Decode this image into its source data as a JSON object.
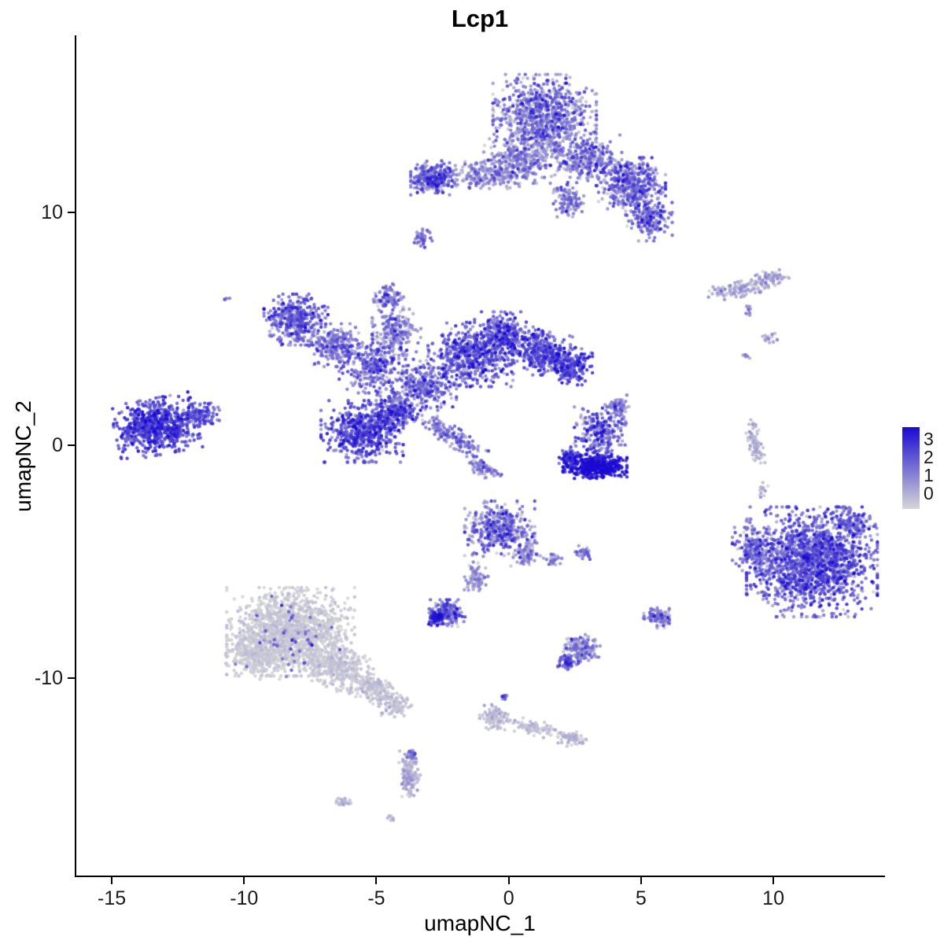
{
  "title": "Lcp1",
  "chart_data": {
    "type": "scatter",
    "title": "Lcp1",
    "xlabel": "umapNC_1",
    "ylabel": "umapNC_2",
    "xlim": [
      -16.4,
      14.1
    ],
    "ylim": [
      -18.4,
      17.6
    ],
    "grid": false,
    "background": "#FFFFFF",
    "axis_color": "#000000",
    "point_radius_px": 2.2,
    "xticks": [
      {
        "value": -15,
        "label": "-15"
      },
      {
        "value": -10,
        "label": "-10"
      },
      {
        "value": -5,
        "label": "-5"
      },
      {
        "value": 0,
        "label": "0"
      },
      {
        "value": 5,
        "label": "5"
      },
      {
        "value": 10,
        "label": "10"
      }
    ],
    "yticks": [
      {
        "value": 10,
        "label": "10"
      },
      {
        "value": 0,
        "label": "0"
      },
      {
        "value": -10,
        "label": "-10"
      }
    ],
    "legend": {
      "position": "right",
      "labels": [
        "3",
        "2",
        "1",
        "0"
      ],
      "low_color": "#D6D6D6",
      "high_color": "#1A0AD1",
      "value_min": 0,
      "value_max": 3
    },
    "clusters": [
      {
        "name": "top-main",
        "cx": 1.3,
        "cy": 14.2,
        "rx": 1.7,
        "ry": 1.5,
        "rot": 0,
        "n": 850,
        "expr": 1.1,
        "sd": 0.7
      },
      {
        "name": "top-lower-left",
        "cx": 0.4,
        "cy": 12.4,
        "rx": 1.3,
        "ry": 1.0,
        "rot": 0,
        "n": 320,
        "expr": 0.9,
        "sd": 0.6
      },
      {
        "name": "top-lower-right",
        "cx": 2.9,
        "cy": 12.3,
        "rx": 1.2,
        "ry": 1.0,
        "rot": 0,
        "n": 320,
        "expr": 1.2,
        "sd": 0.7
      },
      {
        "name": "top-right-lobe",
        "cx": 4.6,
        "cy": 11.2,
        "rx": 1.1,
        "ry": 1.0,
        "rot": 0,
        "n": 420,
        "expr": 1.4,
        "sd": 0.7
      },
      {
        "name": "top-right-tip",
        "cx": 5.2,
        "cy": 9.7,
        "rx": 0.8,
        "ry": 0.8,
        "rot": 0,
        "n": 200,
        "expr": 1.3,
        "sd": 0.7
      },
      {
        "name": "top-left-bridge",
        "cx": -0.8,
        "cy": 11.6,
        "rx": 1.5,
        "ry": 0.5,
        "rot": 0,
        "n": 220,
        "expr": 1.0,
        "sd": 0.6
      },
      {
        "name": "top-left-islet",
        "cx": -2.9,
        "cy": 11.5,
        "rx": 0.75,
        "ry": 0.65,
        "rot": 0,
        "n": 280,
        "expr": 1.5,
        "sd": 0.6
      },
      {
        "name": "top-spur",
        "cx": 2.2,
        "cy": 10.5,
        "rx": 0.5,
        "ry": 0.6,
        "rot": 0,
        "n": 110,
        "expr": 1.1,
        "sd": 0.6
      },
      {
        "name": "top-dot",
        "cx": -3.3,
        "cy": 8.9,
        "rx": 0.3,
        "ry": 0.35,
        "rot": 0,
        "n": 45,
        "expr": 1.4,
        "sd": 0.5
      },
      {
        "name": "center-nw",
        "cx": -8.1,
        "cy": 5.4,
        "rx": 1.05,
        "ry": 0.95,
        "rot": 0,
        "n": 400,
        "expr": 1.5,
        "sd": 0.6
      },
      {
        "name": "center-nw-bridge",
        "cx": -6.6,
        "cy": 4.3,
        "rx": 0.9,
        "ry": 0.8,
        "rot": 0,
        "n": 240,
        "expr": 1.2,
        "sd": 0.6
      },
      {
        "name": "center-mid",
        "cx": -5.2,
        "cy": 3.4,
        "rx": 1.1,
        "ry": 1.0,
        "rot": 0,
        "n": 300,
        "expr": 1.4,
        "sd": 0.7
      },
      {
        "name": "center-upper-arm",
        "cx": -4.3,
        "cy": 4.9,
        "rx": 0.8,
        "ry": 0.9,
        "rot": 0,
        "n": 190,
        "expr": 1.1,
        "sd": 0.6
      },
      {
        "name": "center-top-spur",
        "cx": -4.6,
        "cy": 6.3,
        "rx": 0.5,
        "ry": 0.55,
        "rot": 0,
        "n": 100,
        "expr": 1.2,
        "sd": 0.6
      },
      {
        "name": "center-core",
        "cx": -3.3,
        "cy": 2.6,
        "rx": 1.1,
        "ry": 0.95,
        "rot": 0,
        "n": 280,
        "expr": 1.3,
        "sd": 0.7
      },
      {
        "name": "center-east",
        "cx": -1.5,
        "cy": 3.9,
        "rx": 1.4,
        "ry": 1.2,
        "rot": 0,
        "n": 560,
        "expr": 1.6,
        "sd": 0.7
      },
      {
        "name": "center-east-upper",
        "cx": -0.2,
        "cy": 4.7,
        "rx": 1.0,
        "ry": 0.9,
        "rot": 0,
        "n": 330,
        "expr": 1.6,
        "sd": 0.7
      },
      {
        "name": "center-east-lobe",
        "cx": 1.2,
        "cy": 4.0,
        "rx": 1.0,
        "ry": 0.85,
        "rot": 0,
        "n": 300,
        "expr": 1.8,
        "sd": 0.6
      },
      {
        "name": "center-east-tip",
        "cx": 2.3,
        "cy": 3.4,
        "rx": 0.7,
        "ry": 0.7,
        "rot": 0,
        "n": 210,
        "expr": 1.9,
        "sd": 0.6
      },
      {
        "name": "center-sw-dense",
        "cx": -5.6,
        "cy": 0.6,
        "rx": 1.35,
        "ry": 1.15,
        "rot": 0,
        "n": 560,
        "expr": 1.9,
        "sd": 0.6
      },
      {
        "name": "center-sw-upper",
        "cx": -4.3,
        "cy": 1.5,
        "rx": 0.85,
        "ry": 0.8,
        "rot": 0,
        "n": 240,
        "expr": 1.4,
        "sd": 0.7
      },
      {
        "name": "center-diag-arm",
        "cx": -2.2,
        "cy": 0.4,
        "rx": 1.3,
        "ry": 0.35,
        "rot": -35,
        "n": 150,
        "expr": 1.3,
        "sd": 0.5
      },
      {
        "name": "center-diag-tip",
        "cx": -1.0,
        "cy": -1.0,
        "rx": 0.6,
        "ry": 0.3,
        "rot": -35,
        "n": 70,
        "expr": 1.2,
        "sd": 0.5
      },
      {
        "name": "west-main",
        "cx": -13.4,
        "cy": 0.8,
        "rx": 1.35,
        "ry": 1.05,
        "rot": 12,
        "n": 720,
        "expr": 2.0,
        "sd": 0.5
      },
      {
        "name": "west-tail",
        "cx": -11.8,
        "cy": 1.3,
        "rx": 0.7,
        "ry": 0.45,
        "rot": 0,
        "n": 120,
        "expr": 1.7,
        "sd": 0.5
      },
      {
        "name": "west-outlier-dot",
        "cx": -10.7,
        "cy": 6.3,
        "rx": 0.12,
        "ry": 0.12,
        "rot": 0,
        "n": 4,
        "expr": 1.5,
        "sd": 0.3
      },
      {
        "name": "midright-scatter",
        "cx": 3.4,
        "cy": 0.5,
        "rx": 0.85,
        "ry": 1.0,
        "rot": 0,
        "n": 260,
        "expr": 1.4,
        "sd": 0.7
      },
      {
        "name": "midright-upper",
        "cx": 4.1,
        "cy": 1.6,
        "rx": 0.45,
        "ry": 0.5,
        "rot": 0,
        "n": 70,
        "expr": 1.2,
        "sd": 0.6
      },
      {
        "name": "midright-crescent",
        "cx": 3.2,
        "cy": -0.9,
        "rx": 1.05,
        "ry": 0.45,
        "rot": 0,
        "n": 430,
        "expr": 2.7,
        "sd": 0.3
      },
      {
        "name": "midright-crescent-w",
        "cx": 2.3,
        "cy": -0.5,
        "rx": 0.4,
        "ry": 0.4,
        "rot": 0,
        "n": 90,
        "expr": 2.1,
        "sd": 0.4
      },
      {
        "name": "east-streak-a",
        "cx": 8.6,
        "cy": 6.7,
        "rx": 1.0,
        "ry": 0.3,
        "rot": 10,
        "n": 130,
        "expr": 0.5,
        "sd": 0.4
      },
      {
        "name": "east-streak-b",
        "cx": 9.9,
        "cy": 7.2,
        "rx": 0.55,
        "ry": 0.3,
        "rot": 0,
        "n": 60,
        "expr": 0.6,
        "sd": 0.4
      },
      {
        "name": "east-dot-a",
        "cx": 9.0,
        "cy": 5.8,
        "rx": 0.2,
        "ry": 0.2,
        "rot": 0,
        "n": 14,
        "expr": 0.8,
        "sd": 0.4
      },
      {
        "name": "east-dot-b",
        "cx": 9.8,
        "cy": 4.6,
        "rx": 0.25,
        "ry": 0.2,
        "rot": 0,
        "n": 18,
        "expr": 0.5,
        "sd": 0.4
      },
      {
        "name": "east-dot-c",
        "cx": 8.9,
        "cy": 3.8,
        "rx": 0.15,
        "ry": 0.15,
        "rot": 0,
        "n": 8,
        "expr": 0.7,
        "sd": 0.4
      },
      {
        "name": "east-vstreak",
        "cx": 9.25,
        "cy": 0.1,
        "rx": 0.22,
        "ry": 0.95,
        "rot": 12,
        "n": 85,
        "expr": 0.4,
        "sd": 0.35
      },
      {
        "name": "east-dot-d",
        "cx": 9.5,
        "cy": -1.9,
        "rx": 0.2,
        "ry": 0.3,
        "rot": 0,
        "n": 14,
        "expr": 0.5,
        "sd": 0.4
      },
      {
        "name": "east-dot-e",
        "cx": 9.0,
        "cy": -3.2,
        "rx": 0.15,
        "ry": 0.15,
        "rot": 0,
        "n": 8,
        "expr": 0.6,
        "sd": 0.4
      },
      {
        "name": "southeast-main",
        "cx": 11.4,
        "cy": -5.0,
        "rx": 2.15,
        "ry": 2.05,
        "rot": 0,
        "n": 1650,
        "expr": 1.6,
        "sd": 0.7
      },
      {
        "name": "southeast-west-edge",
        "cx": 9.2,
        "cy": -4.5,
        "rx": 0.7,
        "ry": 0.85,
        "rot": 0,
        "n": 170,
        "expr": 1.2,
        "sd": 0.6
      },
      {
        "name": "southeast-ne",
        "cx": 12.9,
        "cy": -3.3,
        "rx": 0.6,
        "ry": 0.55,
        "rot": 0,
        "n": 110,
        "expr": 1.4,
        "sd": 0.6
      },
      {
        "name": "south-center-main",
        "cx": -0.4,
        "cy": -3.6,
        "rx": 1.15,
        "ry": 1.05,
        "rot": 0,
        "n": 430,
        "expr": 1.2,
        "sd": 0.8
      },
      {
        "name": "south-center-edge",
        "cx": 0.6,
        "cy": -4.7,
        "rx": 0.5,
        "ry": 0.5,
        "rot": 0,
        "n": 90,
        "expr": 0.8,
        "sd": 0.5
      },
      {
        "name": "south-center-tail",
        "cx": -1.3,
        "cy": -5.7,
        "rx": 0.4,
        "ry": 0.6,
        "rot": 0,
        "n": 80,
        "expr": 0.8,
        "sd": 0.5
      },
      {
        "name": "south-knot",
        "cx": -2.4,
        "cy": -7.2,
        "rx": 0.6,
        "ry": 0.5,
        "rot": 0,
        "n": 170,
        "expr": 1.4,
        "sd": 0.7
      },
      {
        "name": "south-knot-dense",
        "cx": -2.8,
        "cy": -7.4,
        "rx": 0.28,
        "ry": 0.28,
        "rot": 0,
        "n": 60,
        "expr": 2.6,
        "sd": 0.3
      },
      {
        "name": "south-dot-a",
        "cx": 1.6,
        "cy": -4.9,
        "rx": 0.3,
        "ry": 0.25,
        "rot": 0,
        "n": 28,
        "expr": 1.0,
        "sd": 0.5
      },
      {
        "name": "south-dot-b",
        "cx": 2.8,
        "cy": -4.6,
        "rx": 0.3,
        "ry": 0.25,
        "rot": 0,
        "n": 32,
        "expr": 1.3,
        "sd": 0.5
      },
      {
        "name": "south-islet",
        "cx": 5.6,
        "cy": -7.4,
        "rx": 0.5,
        "ry": 0.38,
        "rot": 0,
        "n": 95,
        "expr": 1.1,
        "sd": 0.7
      },
      {
        "name": "south-small",
        "cx": 2.7,
        "cy": -8.7,
        "rx": 0.6,
        "ry": 0.5,
        "rot": 0,
        "n": 150,
        "expr": 0.9,
        "sd": 0.6
      },
      {
        "name": "south-small-dense",
        "cx": 2.2,
        "cy": -9.3,
        "rx": 0.35,
        "ry": 0.3,
        "rot": 0,
        "n": 60,
        "expr": 1.6,
        "sd": 0.5
      },
      {
        "name": "southwest-grey-main",
        "cx": -8.3,
        "cy": -8.0,
        "rx": 2.1,
        "ry": 1.65,
        "rot": 0,
        "n": 1500,
        "expr": 0.12,
        "sd": 0.15
      },
      {
        "name": "southwest-grey-left",
        "cx": -9.6,
        "cy": -9.0,
        "rx": 1.0,
        "ry": 0.9,
        "rot": 0,
        "n": 300,
        "expr": 0.1,
        "sd": 0.12
      },
      {
        "name": "southwest-grey-tail",
        "cx": -6.4,
        "cy": -9.6,
        "rx": 1.2,
        "ry": 0.8,
        "rot": -25,
        "n": 330,
        "expr": 0.15,
        "sd": 0.15
      },
      {
        "name": "southwest-grey-tip",
        "cx": -5.1,
        "cy": -10.5,
        "rx": 0.8,
        "ry": 0.5,
        "rot": -25,
        "n": 170,
        "expr": 0.2,
        "sd": 0.2
      },
      {
        "name": "southwest-grey-end",
        "cx": -4.3,
        "cy": -11.2,
        "rx": 0.5,
        "ry": 0.4,
        "rot": 0,
        "n": 80,
        "expr": 0.2,
        "sd": 0.2
      },
      {
        "name": "southwest-sparse-purple",
        "cx": -8.2,
        "cy": -8.2,
        "rx": 1.9,
        "ry": 1.5,
        "rot": 0,
        "n": 45,
        "expr": 1.7,
        "sd": 0.5
      },
      {
        "name": "bottom-blob",
        "cx": -0.6,
        "cy": -11.7,
        "rx": 0.5,
        "ry": 0.5,
        "rot": 0,
        "n": 90,
        "expr": 0.3,
        "sd": 0.25
      },
      {
        "name": "bottom-arm",
        "cx": 0.8,
        "cy": -12.1,
        "rx": 1.0,
        "ry": 0.28,
        "rot": -14,
        "n": 85,
        "expr": 0.25,
        "sd": 0.2
      },
      {
        "name": "bottom-arm-tip",
        "cx": 2.3,
        "cy": -12.6,
        "rx": 0.5,
        "ry": 0.3,
        "rot": -14,
        "n": 70,
        "expr": 0.3,
        "sd": 0.25
      },
      {
        "name": "bottom-dot-purple",
        "cx": -0.2,
        "cy": -10.8,
        "rx": 0.15,
        "ry": 0.15,
        "rot": 0,
        "n": 10,
        "expr": 1.5,
        "sd": 0.4
      },
      {
        "name": "bottom-vstreak",
        "cx": -3.8,
        "cy": -14.1,
        "rx": 0.35,
        "ry": 0.85,
        "rot": 0,
        "n": 140,
        "expr": 0.4,
        "sd": 0.3
      },
      {
        "name": "bottom-vstreak-dense",
        "cx": -3.75,
        "cy": -13.3,
        "rx": 0.22,
        "ry": 0.25,
        "rot": 0,
        "n": 25,
        "expr": 1.2,
        "sd": 0.5
      },
      {
        "name": "bottom-dot-a",
        "cx": -6.3,
        "cy": -15.3,
        "rx": 0.3,
        "ry": 0.2,
        "rot": 0,
        "n": 28,
        "expr": 0.3,
        "sd": 0.25
      },
      {
        "name": "bottom-dot-b",
        "cx": -4.5,
        "cy": -16.0,
        "rx": 0.18,
        "ry": 0.12,
        "rot": 0,
        "n": 8,
        "expr": 0.3,
        "sd": 0.2
      }
    ]
  }
}
